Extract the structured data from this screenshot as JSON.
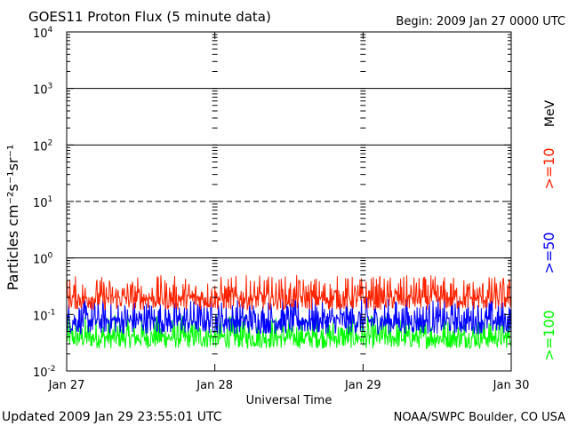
{
  "title": "GOES11 Proton Flux (5 minute data)",
  "begin_label": "Begin: 2009 Jan 27 0000 UTC",
  "updated_label": "Updated 2009 Jan 29 23:55:01 UTC",
  "credit_label": "NOAA/SWPC Boulder, CO USA",
  "colors": {
    "background": "#ffffff",
    "axis": "#000000",
    "ge10": "#ff2200",
    "ge50": "#0000ff",
    "ge100": "#00ff00"
  },
  "chart_data": {
    "type": "line",
    "title": "GOES11 Proton Flux (5 minute data)",
    "xlabel": "Universal Time",
    "ylabel": "Particles cm⁻²s⁻¹sr⁻¹",
    "yscale": "log",
    "ylim": [
      0.01,
      10000
    ],
    "xlim": [
      0,
      3
    ],
    "x_tick_labels": [
      "Jan 27",
      "Jan 28",
      "Jan 29",
      "Jan 30"
    ],
    "y_tick_exponents": [
      -2,
      -1,
      0,
      1,
      2,
      3,
      4
    ],
    "y_tick_labels": [
      {
        "base": "10",
        "exp": "-2"
      },
      {
        "base": "10",
        "exp": "-1"
      },
      {
        "base": "10",
        "exp": "0"
      },
      {
        "base": "10",
        "exp": "1"
      },
      {
        "base": "10",
        "exp": "2"
      },
      {
        "base": "10",
        "exp": "3"
      },
      {
        "base": "10",
        "exp": "4"
      }
    ],
    "reference_lines": [
      {
        "value": 1,
        "style": "solid"
      },
      {
        "value": 10,
        "style": "dashed"
      },
      {
        "value": 100,
        "style": "solid"
      },
      {
        "value": 1000,
        "style": "solid"
      }
    ],
    "right_units": "MeV",
    "series": [
      {
        "name": ">=10",
        "color": "#ff2200",
        "typical": 0.2,
        "low": 0.12,
        "high": 0.5
      },
      {
        "name": ">=50",
        "color": "#0000ff",
        "typical": 0.08,
        "low": 0.045,
        "high": 0.2
      },
      {
        "name": ">=100",
        "color": "#00ff00",
        "typical": 0.04,
        "low": 0.025,
        "high": 0.1
      }
    ]
  }
}
